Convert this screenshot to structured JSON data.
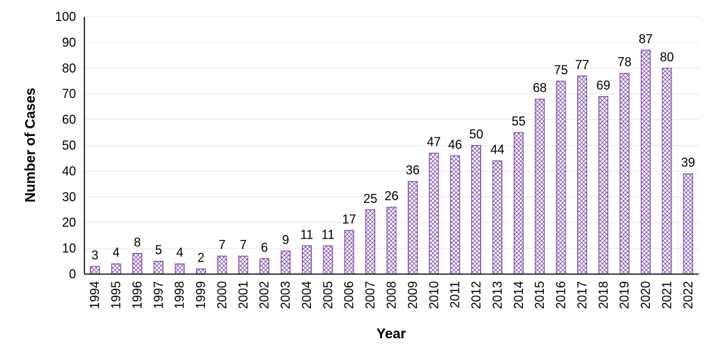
{
  "chart_data": {
    "type": "bar",
    "categories": [
      "1994",
      "1995",
      "1996",
      "1997",
      "1998",
      "1999",
      "2000",
      "2001",
      "2002",
      "2003",
      "2004",
      "2005",
      "2006",
      "2007",
      "2008",
      "2009",
      "2010",
      "2011",
      "2012",
      "2013",
      "2014",
      "2015",
      "2016",
      "2017",
      "2018",
      "2019",
      "2020",
      "2021",
      "2022"
    ],
    "values": [
      3,
      4,
      8,
      5,
      4,
      2,
      7,
      7,
      6,
      9,
      11,
      11,
      17,
      25,
      26,
      36,
      47,
      46,
      50,
      44,
      55,
      68,
      75,
      77,
      69,
      78,
      87,
      80,
      39
    ],
    "xlabel": "Year",
    "ylabel": "Number of Cases",
    "ylim": [
      0,
      100
    ],
    "yticks": [
      0,
      10,
      20,
      30,
      40,
      50,
      60,
      70,
      80,
      90,
      100
    ],
    "grid": true,
    "legend": "none",
    "bar_fill": "#ffffff",
    "bar_pattern_color": "#8a5cb5",
    "bar_stroke": "#7030a0"
  }
}
